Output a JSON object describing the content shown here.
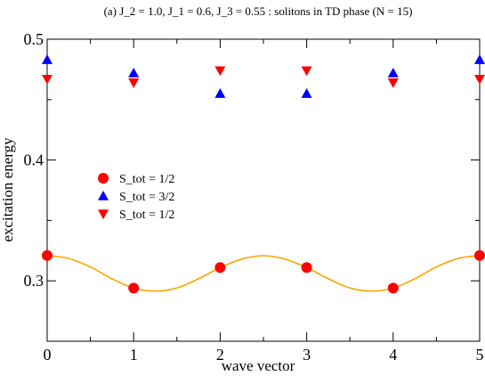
{
  "chart_data": {
    "type": "scatter",
    "title": "(a) J_2 = 1.0, J_1 = 0.6, J_3 = 0.55 : solitons in TD phase (N = 15)",
    "xlabel": "wave vector",
    "ylabel": "excitation energy",
    "xlim": [
      0,
      5
    ],
    "ylim": [
      0.25,
      0.5
    ],
    "xticks": [
      0,
      1,
      2,
      3,
      4,
      5
    ],
    "xtick_labels": [
      "0",
      "1",
      "2",
      "3",
      "4",
      "5"
    ],
    "yticks": [
      0.3,
      0.4,
      0.5
    ],
    "ytick_labels": [
      "0.3",
      "0.4",
      "0.5"
    ],
    "grid": false,
    "legend_position": "center-left",
    "series": [
      {
        "name": "S_tot = 1/2",
        "marker": "circle",
        "color": "#ff0000",
        "x": [
          0,
          1,
          2,
          3,
          4,
          5
        ],
        "y": [
          0.321,
          0.294,
          0.311,
          0.311,
          0.294,
          0.321
        ]
      },
      {
        "name": "S_tot = 3/2",
        "marker": "triangle-up",
        "color": "#0000ff",
        "x": [
          0,
          1,
          2,
          3,
          4,
          5
        ],
        "y": [
          0.483,
          0.472,
          0.455,
          0.455,
          0.472,
          0.483
        ]
      },
      {
        "name": "S_tot = 1/2",
        "marker": "triangle-down",
        "color": "#ff0000",
        "x": [
          0,
          1,
          2,
          3,
          4,
          5
        ],
        "y": [
          0.467,
          0.464,
          0.474,
          0.474,
          0.464,
          0.467
        ]
      }
    ],
    "fit_curve": {
      "color": "#ffa500",
      "x": [
        0,
        0.25,
        0.5,
        0.75,
        1,
        1.25,
        1.5,
        1.75,
        2,
        2.25,
        2.5,
        2.75,
        3,
        3.25,
        3.5,
        3.75,
        4,
        4.25,
        4.5,
        4.75,
        5
      ],
      "y": [
        0.321,
        0.3185,
        0.3115,
        0.3017,
        0.294,
        0.2915,
        0.2941,
        0.3017,
        0.311,
        0.318,
        0.3208,
        0.318,
        0.311,
        0.3017,
        0.2941,
        0.2915,
        0.294,
        0.3017,
        0.3115,
        0.3185,
        0.321
      ]
    }
  }
}
